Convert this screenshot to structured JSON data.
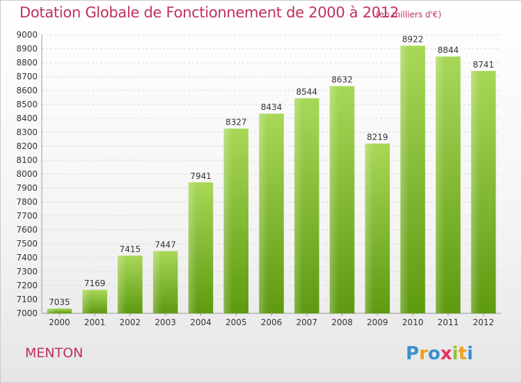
{
  "header": {
    "title": "Dotation Globale de Fonctionnement de 2000 à 2012",
    "unit": "(en milliers d'€)"
  },
  "footer": {
    "commune": "MENTON",
    "logo_text": "Proxiti"
  },
  "colors": {
    "title": "#c0305a",
    "bar_light": "#a8d858",
    "bar_dark": "#5e9a10",
    "grid": "#d8d8d8"
  },
  "chart_data": {
    "type": "bar",
    "categories": [
      "2000",
      "2001",
      "2002",
      "2003",
      "2004",
      "2005",
      "2006",
      "2007",
      "2008",
      "2009",
      "2010",
      "2011",
      "2012"
    ],
    "values": [
      7035,
      7169,
      7415,
      7447,
      7941,
      8327,
      8434,
      8544,
      8632,
      8219,
      8922,
      8844,
      8741
    ],
    "ylim": [
      7000,
      9000
    ],
    "ytick_step": 100,
    "grid": true,
    "legend": "none"
  }
}
